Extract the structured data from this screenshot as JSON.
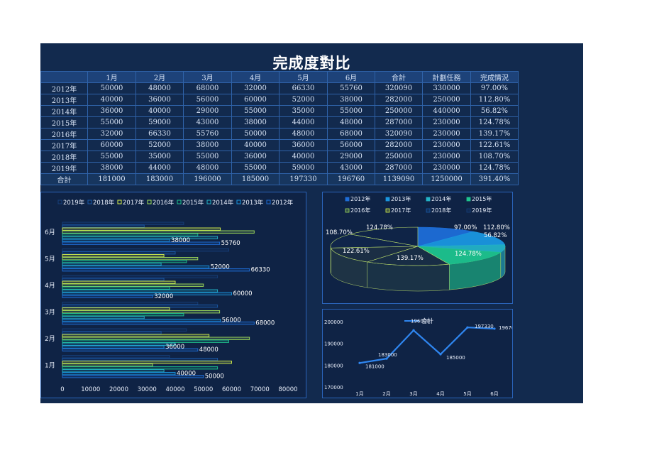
{
  "title": "完成度對比",
  "table": {
    "headers": [
      "",
      "1月",
      "2月",
      "3月",
      "4月",
      "5月",
      "6月",
      "合計",
      "計劃任務",
      "完成情況"
    ],
    "rows": [
      [
        "2012年",
        "50000",
        "48000",
        "68000",
        "32000",
        "66330",
        "55760",
        "320090",
        "330000",
        "97.00%"
      ],
      [
        "2013年",
        "40000",
        "36000",
        "56000",
        "60000",
        "52000",
        "38000",
        "282000",
        "250000",
        "112.80%"
      ],
      [
        "2014年",
        "36000",
        "40000",
        "29000",
        "55000",
        "35000",
        "55000",
        "250000",
        "440000",
        "56.82%"
      ],
      [
        "2015年",
        "55000",
        "59000",
        "43000",
        "38000",
        "44000",
        "48000",
        "287000",
        "230000",
        "124.78%"
      ],
      [
        "2016年",
        "32000",
        "66330",
        "55760",
        "50000",
        "48000",
        "68000",
        "320090",
        "230000",
        "139.17%"
      ],
      [
        "2017年",
        "60000",
        "52000",
        "38000",
        "40000",
        "36000",
        "56000",
        "282000",
        "230000",
        "122.61%"
      ],
      [
        "2018年",
        "55000",
        "35000",
        "55000",
        "36000",
        "40000",
        "29000",
        "250000",
        "230000",
        "108.70%"
      ],
      [
        "2019年",
        "38000",
        "44000",
        "48000",
        "55000",
        "59000",
        "43000",
        "287000",
        "230000",
        "124.78%"
      ]
    ],
    "total_row": [
      "合計",
      "181000",
      "183000",
      "196000",
      "185000",
      "197330",
      "196760",
      "1139090",
      "1250000",
      "391.40%"
    ]
  },
  "chart_data": [
    {
      "type": "bar",
      "orientation": "horizontal",
      "categories": [
        "1月",
        "2月",
        "3月",
        "4月",
        "5月",
        "6月"
      ],
      "series": [
        {
          "name": "2019年",
          "values": [
            38000,
            44000,
            48000,
            55000,
            59000,
            43000
          ]
        },
        {
          "name": "2018年",
          "values": [
            55000,
            35000,
            55000,
            36000,
            40000,
            29000
          ]
        },
        {
          "name": "2017年",
          "values": [
            60000,
            52000,
            38000,
            40000,
            36000,
            56000
          ]
        },
        {
          "name": "2016年",
          "values": [
            32000,
            66330,
            55760,
            50000,
            48000,
            68000
          ]
        },
        {
          "name": "2015年",
          "values": [
            55000,
            59000,
            43000,
            38000,
            44000,
            48000
          ]
        },
        {
          "name": "2014年",
          "values": [
            36000,
            40000,
            29000,
            55000,
            35000,
            55000
          ]
        },
        {
          "name": "2013年",
          "values": [
            40000,
            36000,
            56000,
            60000,
            52000,
            38000
          ]
        },
        {
          "name": "2012年",
          "values": [
            50000,
            48000,
            68000,
            32000,
            66330,
            55760
          ]
        }
      ],
      "xlim": [
        0,
        80000
      ],
      "xticks": [
        "0",
        "10000",
        "20000",
        "30000",
        "40000",
        "50000",
        "60000",
        "70000",
        "80000"
      ],
      "data_labels": [
        {
          "category": "1月",
          "series": "2013年",
          "text": "40000"
        },
        {
          "category": "1月",
          "series": "2012年",
          "text": "50000"
        },
        {
          "category": "2月",
          "series": "2013年",
          "text": "36000"
        },
        {
          "category": "2月",
          "series": "2012年",
          "text": "48000"
        },
        {
          "category": "3月",
          "series": "2013年",
          "text": "56000"
        },
        {
          "category": "3月",
          "series": "2012年",
          "text": "68000"
        },
        {
          "category": "4月",
          "series": "2012年",
          "text": "32000"
        },
        {
          "category": "4月",
          "series": "2013年",
          "text": "60000"
        },
        {
          "category": "5月",
          "series": "2013年",
          "text": "52000"
        },
        {
          "category": "5月",
          "series": "2012年",
          "text": "66330"
        },
        {
          "category": "6月",
          "series": "2013年",
          "text": "38000"
        },
        {
          "category": "6月",
          "series": "2012年",
          "text": "55760"
        }
      ],
      "legend": "top",
      "grid": false
    },
    {
      "type": "pie",
      "style": "3d",
      "categories": [
        "2012年",
        "2013年",
        "2014年",
        "2015年",
        "2016年",
        "2017年",
        "2018年",
        "2019年"
      ],
      "values": [
        97.0,
        112.8,
        56.82,
        124.78,
        139.17,
        122.61,
        108.7,
        124.78
      ],
      "labels": [
        "97.00%",
        "112.80%",
        "56.82%",
        "124.78%",
        "139.17%",
        "122.61%",
        "108.70%",
        "124.78%"
      ],
      "legend": "top"
    },
    {
      "type": "line",
      "series": [
        {
          "name": "合計",
          "values": [
            181000,
            183000,
            196000,
            185000,
            197330,
            196760
          ]
        }
      ],
      "categories": [
        "1月",
        "2月",
        "3月",
        "4月",
        "5月",
        "6月"
      ],
      "ylim": [
        170000,
        200000
      ],
      "yticks": [
        "200000",
        "190000",
        "180000",
        "170000"
      ],
      "legend": "top"
    }
  ],
  "colors": {
    "background": "#122a4e",
    "series": {
      "2012年": "#1e6ed8",
      "2013年": "#1a97e0",
      "2014年": "#23b3c7",
      "2015年": "#1ec48e",
      "2016年": "#a2e05a",
      "2017年": "#d8f24a",
      "2018年": "#1a5aa8",
      "2019年": "#163f7a"
    },
    "line": "#2f86f0"
  }
}
